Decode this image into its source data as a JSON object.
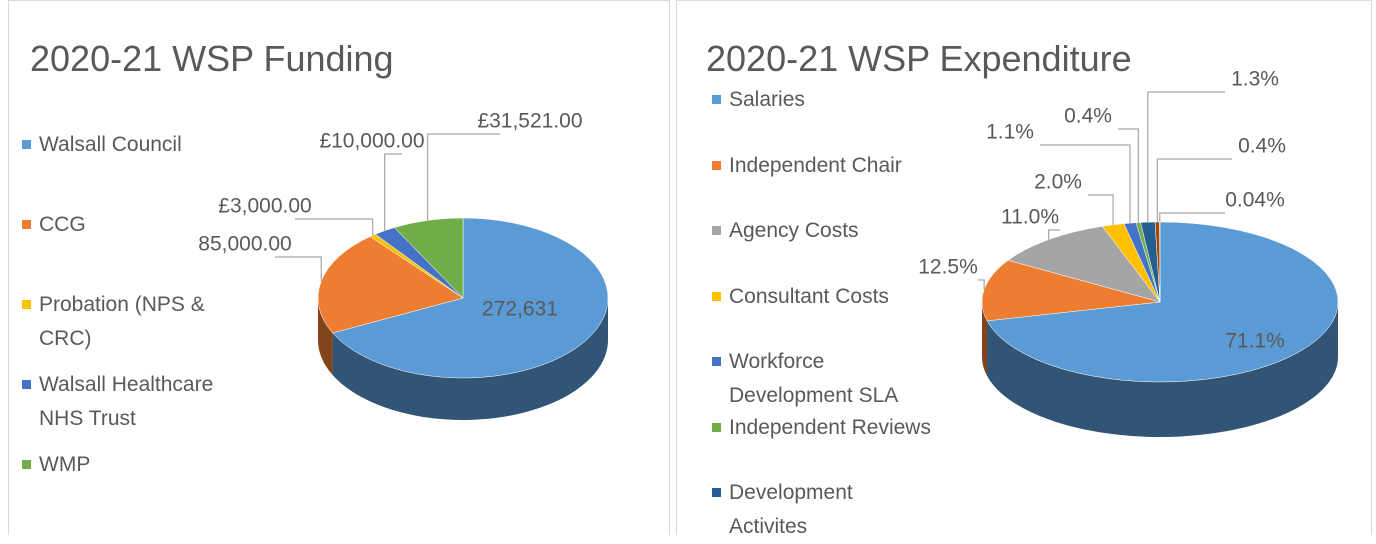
{
  "chart_data": [
    {
      "type": "pie",
      "title": "2020-21 WSP Funding",
      "categories": [
        "Walsall Council",
        "CCG",
        "Probation (NPS & CRC)",
        "Walsall Healthcare NHS Trust",
        "WMP"
      ],
      "values": [
        272631,
        85000,
        3000,
        10000,
        31521
      ],
      "value_labels": [
        "272,631",
        "85,000.00",
        "£3,000.00",
        "£10,000.00",
        "£31,521.00"
      ],
      "colors": [
        "#5b9bd5",
        "#ed7d31",
        "#ffc000",
        "#4472c4",
        "#70ad47"
      ]
    },
    {
      "type": "pie",
      "title": "2020-21 WSP Expenditure",
      "categories": [
        "Salaries",
        "Independent Chair",
        "Agency Costs",
        "Consultant Costs",
        "Workforce Development SLA",
        "Independent Reviews",
        "Development Activites",
        null,
        null
      ],
      "values": [
        71.1,
        12.5,
        11.0,
        2.0,
        1.1,
        0.4,
        1.3,
        0.4,
        0.04
      ],
      "value_labels": [
        "71.1%",
        "12.5%",
        "11.0%",
        "2.0%",
        "1.1%",
        "0.4%",
        "1.3%",
        "0.4%",
        "0.04%"
      ],
      "colors": [
        "#5b9bd5",
        "#ed7d31",
        "#a5a5a5",
        "#ffc000",
        "#4472c4",
        "#70ad47",
        "#255e91",
        "#9e480e",
        "#636363"
      ]
    }
  ]
}
